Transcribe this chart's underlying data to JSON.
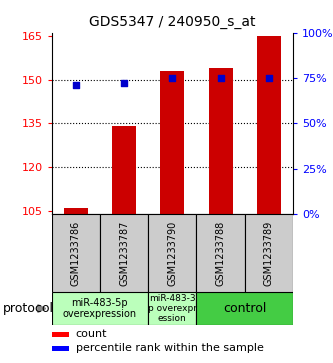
{
  "title": "GDS5347 / 240950_s_at",
  "samples": [
    "GSM1233786",
    "GSM1233787",
    "GSM1233790",
    "GSM1233788",
    "GSM1233789"
  ],
  "bar_values": [
    106,
    134,
    153,
    154,
    165
  ],
  "percentile_values": [
    71,
    72,
    75,
    75,
    75
  ],
  "bar_color": "#cc0000",
  "dot_color": "#0000cc",
  "ylim_left": [
    104,
    166
  ],
  "ylim_right": [
    0,
    100
  ],
  "yticks_left": [
    105,
    120,
    135,
    150,
    165
  ],
  "yticks_right": [
    0,
    25,
    50,
    75,
    100
  ],
  "ytick_labels_right": [
    "0%",
    "25%",
    "50%",
    "75%",
    "100%"
  ],
  "grid_yticks": [
    120,
    135,
    150
  ],
  "protocol_groups": [
    {
      "label": "miR-483-5p\noverexpression",
      "color": "#bbffbb",
      "xmin": -0.5,
      "xmax": 1.5,
      "fontsize": 7
    },
    {
      "label": "miR-483-3\np overexpr\nession",
      "color": "#bbffbb",
      "xmin": 1.5,
      "xmax": 2.5,
      "fontsize": 6.5
    },
    {
      "label": "control",
      "color": "#44cc44",
      "xmin": 2.5,
      "xmax": 4.5,
      "fontsize": 9
    }
  ],
  "legend_count_label": "count",
  "legend_percentile_label": "percentile rank within the sample",
  "protocol_label": "protocol"
}
